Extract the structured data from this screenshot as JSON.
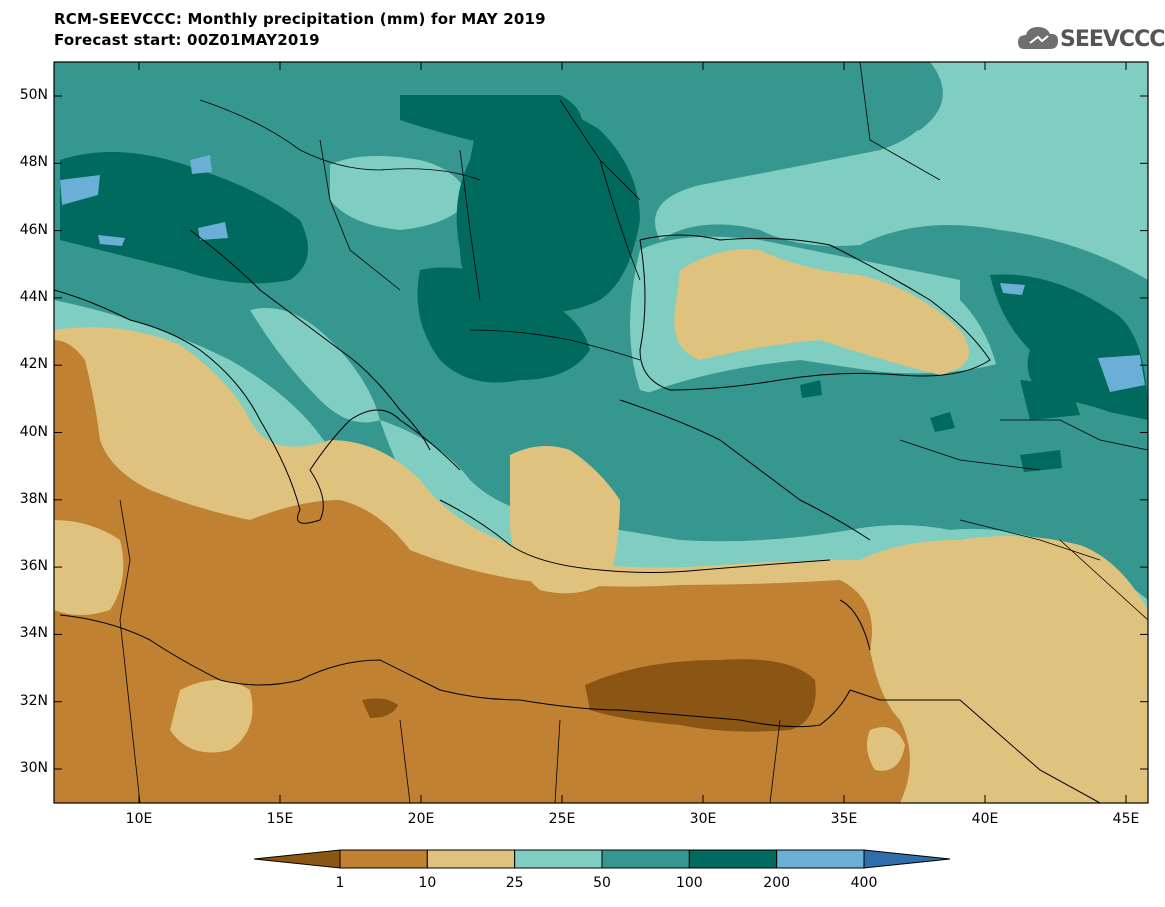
{
  "header": {
    "title": "RCM-SEEVCCC: Monthly precipitation (mm) for MAY 2019",
    "subtitle": "Forecast start: 00Z01MAY2019",
    "logo_text": "SEEVCCC"
  },
  "map": {
    "variable": "Monthly precipitation",
    "units": "mm",
    "lon_range": [
      7,
      46
    ],
    "lat_range": [
      29,
      51
    ],
    "lat_labels": [
      "50N",
      "48N",
      "46N",
      "44N",
      "42N",
      "40N",
      "38N",
      "36N",
      "34N",
      "32N",
      "30N"
    ],
    "lon_labels": [
      "10E",
      "15E",
      "20E",
      "25E",
      "30E",
      "35E",
      "40E",
      "45E"
    ],
    "bands": [
      {
        "threshold": "<1",
        "color": "#8b5513"
      },
      {
        "threshold": "1-10",
        "color": "#c08232"
      },
      {
        "threshold": "10-25",
        "color": "#dfc27e"
      },
      {
        "threshold": "25-50",
        "color": "#80cdc1"
      },
      {
        "threshold": "50-100",
        "color": "#35978f"
      },
      {
        "threshold": "100-200",
        "color": "#016a5e"
      },
      {
        "threshold": "200-400",
        "color": "#6baed6"
      },
      {
        "threshold": ">400",
        "color": "#2f6eaa"
      }
    ]
  },
  "colorbar": {
    "labels": [
      "1",
      "10",
      "25",
      "50",
      "100",
      "200",
      "400"
    ]
  }
}
